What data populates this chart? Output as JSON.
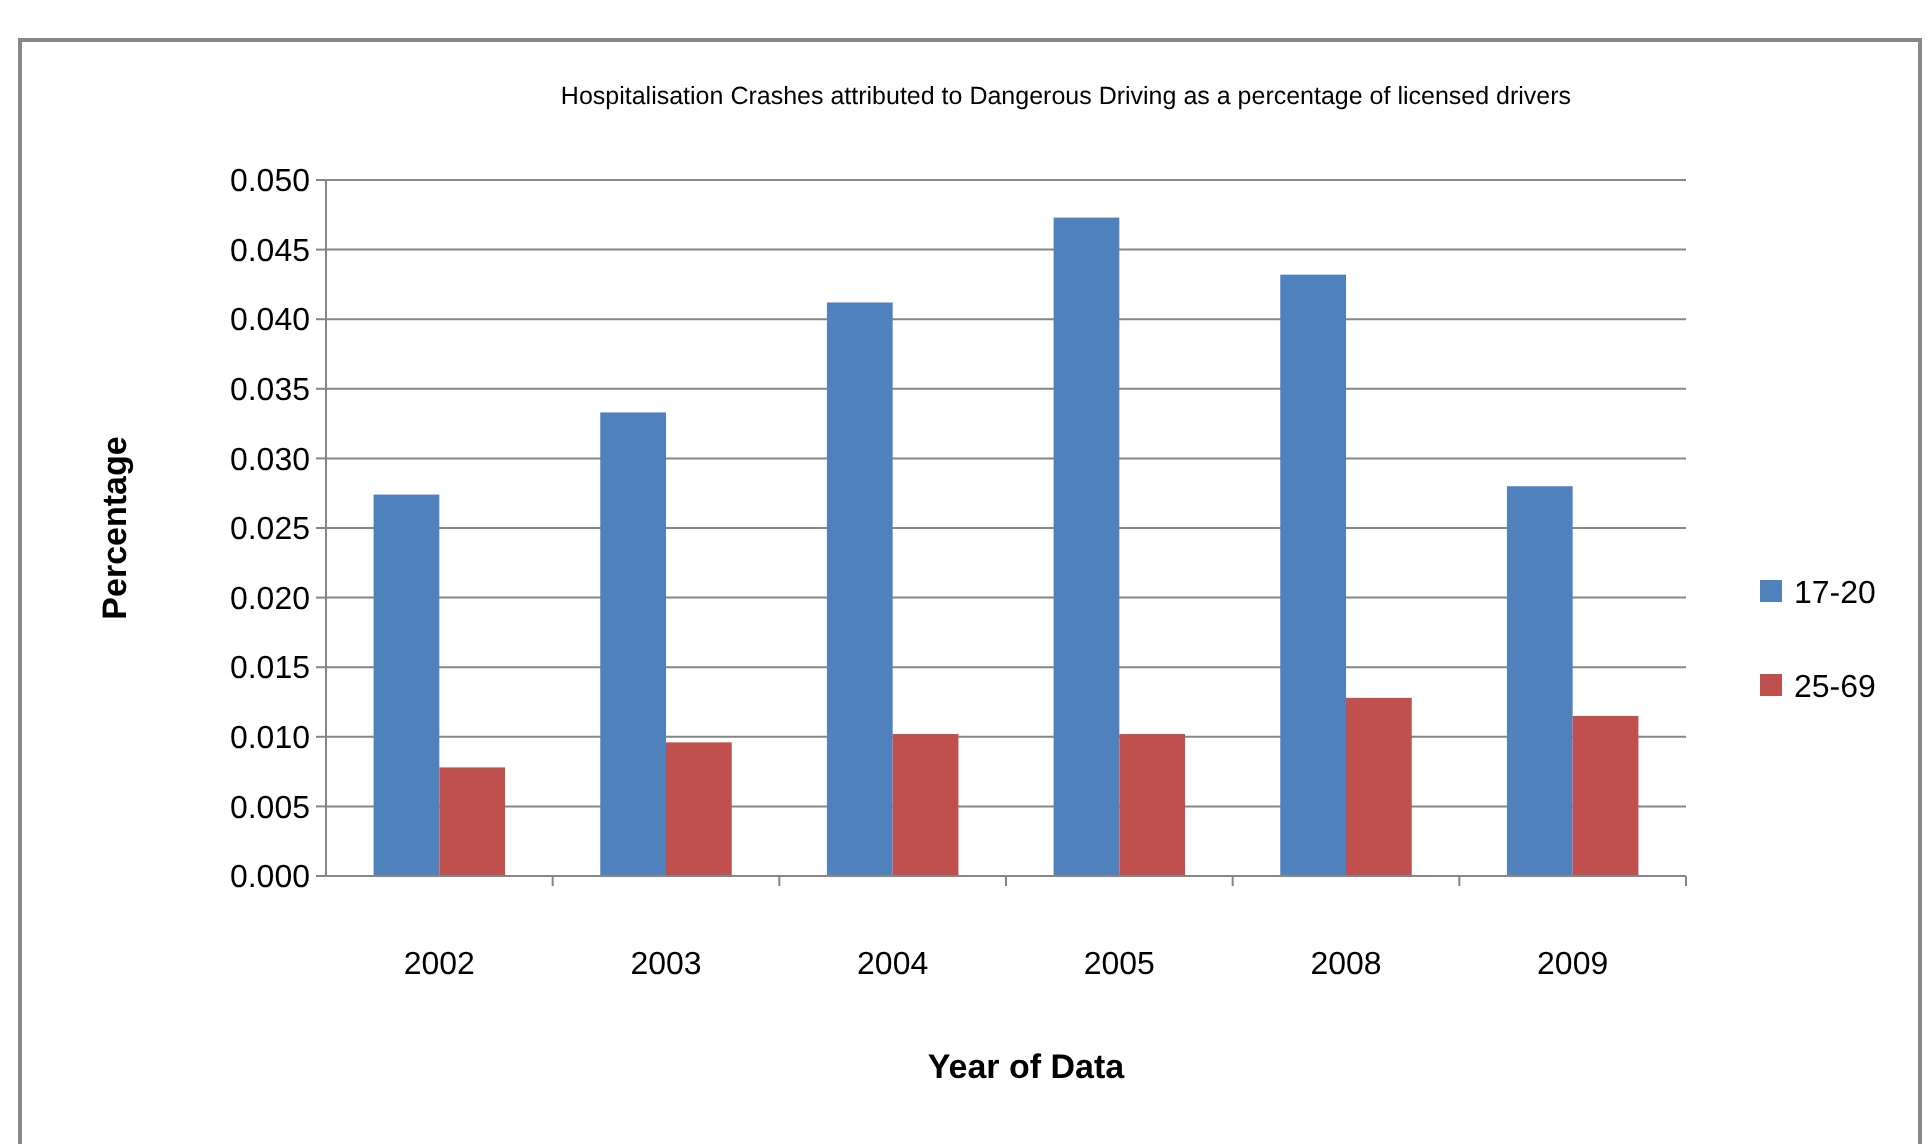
{
  "chart_data": {
    "type": "bar",
    "title": "Hospitalisation Crashes attributed to Dangerous Driving as a percentage of licensed drivers",
    "xlabel": "Year of Data",
    "ylabel": "Percentage",
    "categories": [
      "2002",
      "2003",
      "2004",
      "2005",
      "2008",
      "2009"
    ],
    "series": [
      {
        "name": "17-20",
        "color": "#4f81bd",
        "values": [
          0.0274,
          0.0333,
          0.0412,
          0.0473,
          0.0432,
          0.028
        ]
      },
      {
        "name": "25-69",
        "color": "#c0504d",
        "values": [
          0.0078,
          0.0096,
          0.0102,
          0.0102,
          0.0128,
          0.0115
        ]
      }
    ],
    "ylim": [
      0,
      0.05
    ],
    "yticks": [
      {
        "value": 0,
        "label": "0.000"
      },
      {
        "value": 0.005,
        "label": "0.005"
      },
      {
        "value": 0.01,
        "label": "0.010"
      },
      {
        "value": 0.015,
        "label": "0.015"
      },
      {
        "value": 0.02,
        "label": "0.020"
      },
      {
        "value": 0.025,
        "label": "0.025"
      },
      {
        "value": 0.03,
        "label": "0.030"
      },
      {
        "value": 0.035,
        "label": "0.035"
      },
      {
        "value": 0.04,
        "label": "0.040"
      },
      {
        "value": 0.045,
        "label": "0.045"
      },
      {
        "value": 0.05,
        "label": "0.050"
      }
    ],
    "grid": "y",
    "legend": "right"
  }
}
